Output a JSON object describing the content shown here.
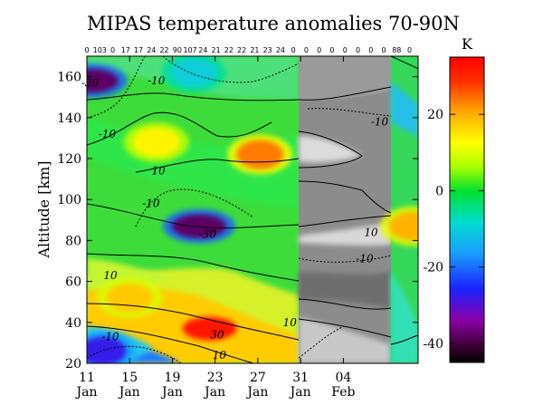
{
  "chart_data": {
    "type": "heatmap",
    "title": "MIPAS temperature anomalies 70-90N",
    "ylabel": "Altitude [km]",
    "ylim": [
      20,
      170
    ],
    "xlim": [
      11,
      42
    ],
    "x_ticks": [
      {
        "value": 11,
        "line1": "11",
        "line2": "Jan"
      },
      {
        "value": 15,
        "line1": "15",
        "line2": "Jan"
      },
      {
        "value": 19,
        "line1": "19",
        "line2": "Jan"
      },
      {
        "value": 23,
        "line1": "23",
        "line2": "Jan"
      },
      {
        "value": 27,
        "line1": "27",
        "line2": "Jan"
      },
      {
        "value": 31,
        "line1": "31",
        "line2": "Jan"
      },
      {
        "value": 35,
        "line1": "04",
        "line2": "Feb"
      }
    ],
    "y_ticks": [
      20,
      40,
      60,
      80,
      100,
      120,
      140,
      160
    ],
    "top_counts": [
      "0",
      "103",
      "0",
      "17",
      "17",
      "24",
      "22",
      "90",
      "107",
      "24",
      "21",
      "22",
      "22",
      "21",
      "23",
      "24",
      "0",
      "0",
      "0",
      "0",
      "0",
      "0",
      "0",
      "0",
      "88",
      "0"
    ],
    "colorbar": {
      "unit": "K",
      "min": -45,
      "max": 35,
      "ticks": [
        20,
        0,
        -20,
        -40
      ],
      "tick_labels": [
        "20",
        "0",
        "-20",
        "-40"
      ]
    },
    "contour_labels": [
      {
        "text": "-30",
        "x": 11.3,
        "y": 157
      },
      {
        "text": "-10",
        "x": 17.5,
        "y": 158
      },
      {
        "text": "-10",
        "x": 12.9,
        "y": 132
      },
      {
        "text": "10",
        "x": 17.7,
        "y": 114
      },
      {
        "text": "-10",
        "x": 17.0,
        "y": 98
      },
      {
        "text": "-30",
        "x": 22.3,
        "y": 83
      },
      {
        "text": "10",
        "x": 13.2,
        "y": 63
      },
      {
        "text": "-10",
        "x": 13.2,
        "y": 33
      },
      {
        "text": "30",
        "x": 23.2,
        "y": 34
      },
      {
        "text": "10",
        "x": 23.4,
        "y": 24
      },
      {
        "text": "10",
        "x": 30.0,
        "y": 40
      },
      {
        "text": "-10",
        "x": 37.0,
        "y": 71
      },
      {
        "text": "10",
        "x": 37.6,
        "y": 84
      },
      {
        "text": "-10",
        "x": 38.4,
        "y": 138
      }
    ],
    "data_gap": {
      "x_start": 28.0,
      "x_end": 39.8
    },
    "features": [
      {
        "x": 21.0,
        "y": 162,
        "value": -10
      },
      {
        "x": 11.4,
        "y": 158,
        "value": -38
      },
      {
        "x": 17.5,
        "y": 128,
        "value": 14
      },
      {
        "x": 27.2,
        "y": 122,
        "value": 24
      },
      {
        "x": 21.5,
        "y": 87,
        "value": -38
      },
      {
        "x": 15.0,
        "y": 52,
        "value": 18
      },
      {
        "x": 22.5,
        "y": 37,
        "value": 32
      },
      {
        "x": 12.5,
        "y": 26,
        "value": -28
      },
      {
        "x": 41.5,
        "y": 87,
        "value": 20
      }
    ]
  }
}
